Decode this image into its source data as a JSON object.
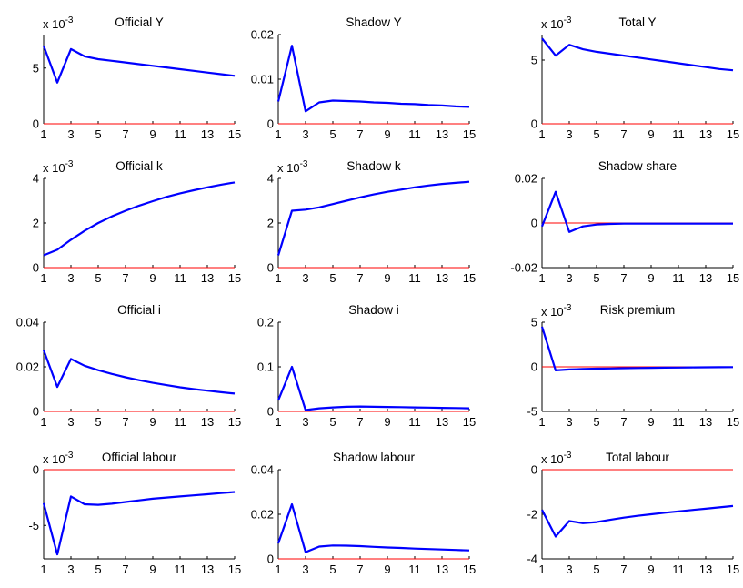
{
  "chart_data": [
    {
      "type": "line",
      "title": "Official Y",
      "exponent_label": "x 10",
      "exponent": "-3",
      "x": [
        1,
        2,
        3,
        4,
        5,
        6,
        7,
        8,
        9,
        10,
        11,
        12,
        13,
        14,
        15
      ],
      "series": [
        {
          "values": [
            7.0,
            3.7,
            6.7,
            6.05,
            5.8,
            5.65,
            5.5,
            5.35,
            5.2,
            5.05,
            4.9,
            4.75,
            4.6,
            4.45,
            4.3
          ],
          "color": "#0000ff"
        }
      ],
      "baseline": {
        "y": 0,
        "color": "#ff0000"
      },
      "ylim": [
        0,
        8
      ],
      "yticks": [
        0,
        5
      ],
      "ytick_labels": [
        "0",
        "5"
      ],
      "xticks": [
        1,
        3,
        5,
        7,
        9,
        11,
        13,
        15
      ],
      "xlim": [
        1,
        15
      ]
    },
    {
      "type": "line",
      "title": "Shadow Y",
      "exponent_label": "",
      "exponent": "",
      "x": [
        1,
        2,
        3,
        4,
        5,
        6,
        7,
        8,
        9,
        10,
        11,
        12,
        13,
        14,
        15
      ],
      "series": [
        {
          "values": [
            0.005,
            0.0175,
            0.0028,
            0.0048,
            0.0052,
            0.0051,
            0.005,
            0.0048,
            0.0047,
            0.0045,
            0.0044,
            0.0042,
            0.0041,
            0.0039,
            0.0038
          ],
          "color": "#0000ff"
        }
      ],
      "baseline": {
        "y": 0,
        "color": "#ff0000"
      },
      "ylim": [
        0,
        0.02
      ],
      "yticks": [
        0,
        0.01,
        0.02
      ],
      "ytick_labels": [
        "0",
        "0.01",
        "0.02"
      ],
      "xticks": [
        1,
        3,
        5,
        7,
        9,
        11,
        13,
        15
      ],
      "xlim": [
        1,
        15
      ]
    },
    {
      "type": "line",
      "title": "Total Y",
      "exponent_label": "x 10",
      "exponent": "-3",
      "x": [
        1,
        2,
        3,
        4,
        5,
        6,
        7,
        8,
        9,
        10,
        11,
        12,
        13,
        14,
        15
      ],
      "series": [
        {
          "values": [
            6.7,
            5.35,
            6.2,
            5.85,
            5.65,
            5.5,
            5.35,
            5.2,
            5.05,
            4.9,
            4.75,
            4.6,
            4.45,
            4.3,
            4.2
          ],
          "color": "#0000ff"
        }
      ],
      "baseline": {
        "y": 0,
        "color": "#ff0000"
      },
      "ylim": [
        0,
        7
      ],
      "yticks": [
        0,
        5
      ],
      "ytick_labels": [
        "0",
        "5"
      ],
      "xticks": [
        1,
        3,
        5,
        7,
        9,
        11,
        13,
        15
      ],
      "xlim": [
        1,
        15
      ]
    },
    {
      "type": "line",
      "title": "Official k",
      "exponent_label": "x 10",
      "exponent": "-3",
      "x": [
        1,
        2,
        3,
        4,
        5,
        6,
        7,
        8,
        9,
        10,
        11,
        12,
        13,
        14,
        15
      ],
      "series": [
        {
          "values": [
            0.55,
            0.8,
            1.25,
            1.65,
            2.0,
            2.3,
            2.55,
            2.78,
            2.98,
            3.17,
            3.33,
            3.47,
            3.6,
            3.72,
            3.82
          ],
          "color": "#0000ff"
        }
      ],
      "baseline": {
        "y": 0,
        "color": "#ff0000"
      },
      "ylim": [
        0,
        4
      ],
      "yticks": [
        0,
        2,
        4
      ],
      "ytick_labels": [
        "0",
        "2",
        "4"
      ],
      "xticks": [
        1,
        3,
        5,
        7,
        9,
        11,
        13,
        15
      ],
      "xlim": [
        1,
        15
      ]
    },
    {
      "type": "line",
      "title": "Shadow k",
      "exponent_label": "x 10",
      "exponent": "-3",
      "x": [
        1,
        2,
        3,
        4,
        5,
        6,
        7,
        8,
        9,
        10,
        11,
        12,
        13,
        14,
        15
      ],
      "series": [
        {
          "values": [
            0.55,
            2.55,
            2.6,
            2.7,
            2.85,
            3.0,
            3.15,
            3.28,
            3.4,
            3.5,
            3.6,
            3.68,
            3.75,
            3.8,
            3.85
          ],
          "color": "#0000ff"
        }
      ],
      "baseline": {
        "y": 0,
        "color": "#ff0000"
      },
      "ylim": [
        0,
        4
      ],
      "yticks": [
        0,
        2,
        4
      ],
      "ytick_labels": [
        "0",
        "2",
        "4"
      ],
      "xticks": [
        1,
        3,
        5,
        7,
        9,
        11,
        13,
        15
      ],
      "xlim": [
        1,
        15
      ]
    },
    {
      "type": "line",
      "title": "Shadow share",
      "exponent_label": "",
      "exponent": "",
      "x": [
        1,
        2,
        3,
        4,
        5,
        6,
        7,
        8,
        9,
        10,
        11,
        12,
        13,
        14,
        15
      ],
      "series": [
        {
          "values": [
            -0.0015,
            0.014,
            -0.004,
            -0.0015,
            -0.0007,
            -0.0004,
            -0.0003,
            -0.0003,
            -0.0003,
            -0.0003,
            -0.0003,
            -0.0003,
            -0.0003,
            -0.0003,
            -0.0003
          ],
          "color": "#0000ff"
        }
      ],
      "baseline": {
        "y": 0,
        "color": "#ff0000"
      },
      "ylim": [
        -0.02,
        0.02
      ],
      "yticks": [
        -0.02,
        0,
        0.02
      ],
      "ytick_labels": [
        "-0.02",
        "0",
        "0.02"
      ],
      "xticks": [
        1,
        3,
        5,
        7,
        9,
        11,
        13,
        15
      ],
      "xlim": [
        1,
        15
      ]
    },
    {
      "type": "line",
      "title": "Official i",
      "exponent_label": "",
      "exponent": "",
      "x": [
        1,
        2,
        3,
        4,
        5,
        6,
        7,
        8,
        9,
        10,
        11,
        12,
        13,
        14,
        15
      ],
      "series": [
        {
          "values": [
            0.0275,
            0.011,
            0.0235,
            0.0205,
            0.0185,
            0.0168,
            0.0153,
            0.014,
            0.0128,
            0.0118,
            0.0108,
            0.01,
            0.0093,
            0.0086,
            0.008
          ],
          "color": "#0000ff"
        }
      ],
      "baseline": {
        "y": 0,
        "color": "#ff0000"
      },
      "ylim": [
        0,
        0.04
      ],
      "yticks": [
        0,
        0.02,
        0.04
      ],
      "ytick_labels": [
        "0",
        "0.02",
        "0.04"
      ],
      "xticks": [
        1,
        3,
        5,
        7,
        9,
        11,
        13,
        15
      ],
      "xlim": [
        1,
        15
      ]
    },
    {
      "type": "line",
      "title": "Shadow i",
      "exponent_label": "",
      "exponent": "",
      "x": [
        1,
        2,
        3,
        4,
        5,
        6,
        7,
        8,
        9,
        10,
        11,
        12,
        13,
        14,
        15
      ],
      "series": [
        {
          "values": [
            0.025,
            0.1,
            0.003,
            0.007,
            0.009,
            0.0105,
            0.011,
            0.0105,
            0.01,
            0.0095,
            0.009,
            0.0085,
            0.008,
            0.0075,
            0.007
          ],
          "color": "#0000ff"
        }
      ],
      "baseline": {
        "y": 0,
        "color": "#ff0000"
      },
      "ylim": [
        0,
        0.2
      ],
      "yticks": [
        0,
        0.1,
        0.2
      ],
      "ytick_labels": [
        "0",
        "0.1",
        "0.2"
      ],
      "xticks": [
        1,
        3,
        5,
        7,
        9,
        11,
        13,
        15
      ],
      "xlim": [
        1,
        15
      ]
    },
    {
      "type": "line",
      "title": "Risk premium",
      "exponent_label": "x 10",
      "exponent": "-3",
      "x": [
        1,
        2,
        3,
        4,
        5,
        6,
        7,
        8,
        9,
        10,
        11,
        12,
        13,
        14,
        15
      ],
      "series": [
        {
          "values": [
            4.5,
            -0.4,
            -0.3,
            -0.25,
            -0.2,
            -0.18,
            -0.15,
            -0.13,
            -0.11,
            -0.09,
            -0.08,
            -0.06,
            -0.05,
            -0.04,
            -0.03
          ],
          "color": "#0000ff"
        }
      ],
      "baseline": {
        "y": 0,
        "color": "#ff0000"
      },
      "ylim": [
        -5,
        5
      ],
      "yticks": [
        -5,
        0,
        5
      ],
      "ytick_labels": [
        "-5",
        "0",
        "5"
      ],
      "xticks": [
        1,
        3,
        5,
        7,
        9,
        11,
        13,
        15
      ],
      "xlim": [
        1,
        15
      ]
    },
    {
      "type": "line",
      "title": "Official labour",
      "exponent_label": "x 10",
      "exponent": "-3",
      "x": [
        1,
        2,
        3,
        4,
        5,
        6,
        7,
        8,
        9,
        10,
        11,
        12,
        13,
        14,
        15
      ],
      "series": [
        {
          "values": [
            -3.0,
            -7.6,
            -2.4,
            -3.1,
            -3.15,
            -3.05,
            -2.9,
            -2.75,
            -2.6,
            -2.5,
            -2.4,
            -2.3,
            -2.2,
            -2.1,
            -2.0
          ],
          "color": "#0000ff"
        }
      ],
      "baseline": {
        "y": 0,
        "color": "#ff0000"
      },
      "ylim": [
        -8,
        0
      ],
      "yticks": [
        -5,
        0
      ],
      "ytick_labels": [
        "-5",
        "0"
      ],
      "xticks": [
        1,
        3,
        5,
        7,
        9,
        11,
        13,
        15
      ],
      "xlim": [
        1,
        15
      ]
    },
    {
      "type": "line",
      "title": "Shadow labour",
      "exponent_label": "",
      "exponent": "",
      "x": [
        1,
        2,
        3,
        4,
        5,
        6,
        7,
        8,
        9,
        10,
        11,
        12,
        13,
        14,
        15
      ],
      "series": [
        {
          "values": [
            0.007,
            0.0245,
            0.003,
            0.0055,
            0.006,
            0.0059,
            0.0057,
            0.0054,
            0.0051,
            0.0049,
            0.0046,
            0.0044,
            0.0042,
            0.004,
            0.0038
          ],
          "color": "#0000ff"
        }
      ],
      "baseline": {
        "y": 0,
        "color": "#ff0000"
      },
      "ylim": [
        0,
        0.04
      ],
      "yticks": [
        0,
        0.02,
        0.04
      ],
      "ytick_labels": [
        "0",
        "0.02",
        "0.04"
      ],
      "xticks": [
        1,
        3,
        5,
        7,
        9,
        11,
        13,
        15
      ],
      "xlim": [
        1,
        15
      ]
    },
    {
      "type": "line",
      "title": "Total labour",
      "exponent_label": "x 10",
      "exponent": "-3",
      "x": [
        1,
        2,
        3,
        4,
        5,
        6,
        7,
        8,
        9,
        10,
        11,
        12,
        13,
        14,
        15
      ],
      "series": [
        {
          "values": [
            -1.8,
            -3.0,
            -2.3,
            -2.4,
            -2.35,
            -2.25,
            -2.15,
            -2.07,
            -2.0,
            -1.93,
            -1.87,
            -1.81,
            -1.75,
            -1.69,
            -1.63
          ],
          "color": "#0000ff"
        }
      ],
      "baseline": {
        "y": 0,
        "color": "#ff0000"
      },
      "ylim": [
        -4,
        0
      ],
      "yticks": [
        -4,
        -2,
        0
      ],
      "ytick_labels": [
        "-4",
        "-2",
        "0"
      ],
      "xticks": [
        1,
        3,
        5,
        7,
        9,
        11,
        13,
        15
      ],
      "xlim": [
        1,
        15
      ]
    }
  ]
}
